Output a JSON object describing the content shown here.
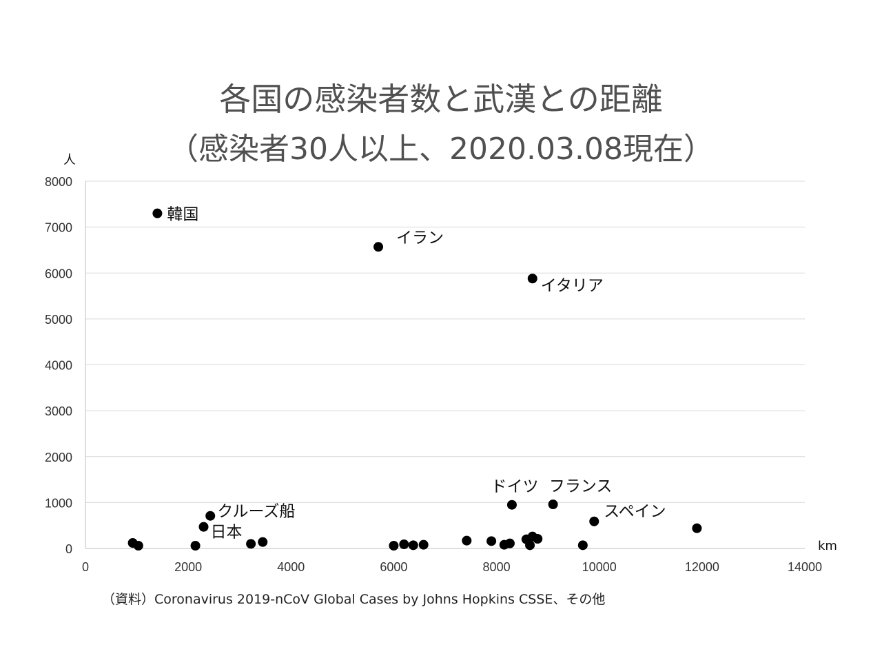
{
  "title_line1": "各国の感染者数と武漢との距離",
  "title_line2": "（感染者30人以上、2020.03.08現在）",
  "source": "（資料）Coronavirus 2019-nCoV Global Cases by Johns Hopkins CSSE、その他",
  "chart_data": {
    "type": "scatter",
    "title": "各国の感染者数と武漢との距離（感染者30人以上、2020.03.08現在）",
    "xlabel": "km",
    "ylabel": "人",
    "xlim": [
      0,
      14000
    ],
    "ylim": [
      0,
      8000
    ],
    "xticks": [
      "0",
      "2000",
      "4000",
      "6000",
      "8000",
      "10000",
      "12000",
      "14000"
    ],
    "yticks": [
      "0",
      "1000",
      "2000",
      "3000",
      "4000",
      "5000",
      "6000",
      "7000",
      "8000"
    ],
    "grid": "horizontal",
    "points": [
      {
        "x": 1400,
        "y": 7300,
        "label": "韓国"
      },
      {
        "x": 5700,
        "y": 6570,
        "label": "イラン"
      },
      {
        "x": 8700,
        "y": 5880,
        "label": "イタリア"
      },
      {
        "x": 8300,
        "y": 950,
        "label": "ドイツ"
      },
      {
        "x": 9100,
        "y": 960,
        "label": "フランス"
      },
      {
        "x": 9900,
        "y": 590,
        "label": "スペイン"
      },
      {
        "x": 2430,
        "y": 710,
        "label": "クルーズ船"
      },
      {
        "x": 2300,
        "y": 470,
        "label": "日本"
      },
      {
        "x": 920,
        "y": 120
      },
      {
        "x": 1030,
        "y": 60
      },
      {
        "x": 2140,
        "y": 60
      },
      {
        "x": 3220,
        "y": 100
      },
      {
        "x": 3450,
        "y": 140
      },
      {
        "x": 6000,
        "y": 60
      },
      {
        "x": 6200,
        "y": 90
      },
      {
        "x": 6380,
        "y": 70
      },
      {
        "x": 6580,
        "y": 80
      },
      {
        "x": 7420,
        "y": 170
      },
      {
        "x": 7900,
        "y": 160
      },
      {
        "x": 8150,
        "y": 80
      },
      {
        "x": 8260,
        "y": 110
      },
      {
        "x": 8580,
        "y": 200
      },
      {
        "x": 8650,
        "y": 70
      },
      {
        "x": 8700,
        "y": 260
      },
      {
        "x": 8800,
        "y": 210
      },
      {
        "x": 9680,
        "y": 70
      },
      {
        "x": 11900,
        "y": 440
      }
    ]
  }
}
